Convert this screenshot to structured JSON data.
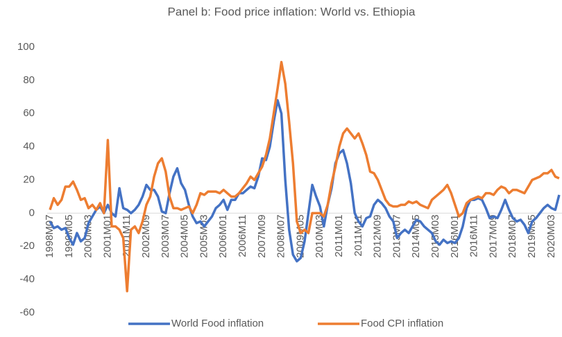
{
  "chart_data": {
    "type": "line",
    "title": "Panel b: Food price inflation: World vs. Ethiopia",
    "categories": [
      "1998M07",
      null,
      null,
      null,
      null,
      "1999M05",
      null,
      null,
      null,
      null,
      "2000M03",
      null,
      null,
      null,
      null,
      "2001M01",
      null,
      null,
      null,
      null,
      "2001M11",
      null,
      null,
      null,
      null,
      "2002M09",
      null,
      null,
      null,
      null,
      "2003M07",
      null,
      null,
      null,
      null,
      "2004M05",
      null,
      null,
      null,
      null,
      "2005M03",
      null,
      null,
      null,
      null,
      "2006M01",
      null,
      null,
      null,
      null,
      "2006M11",
      null,
      null,
      null,
      null,
      "2007M09",
      null,
      null,
      null,
      null,
      "2008M07",
      null,
      null,
      null,
      null,
      "2009M05",
      null,
      null,
      null,
      null,
      "2010M03",
      null,
      null,
      null,
      null,
      "2011M01",
      null,
      null,
      null,
      null,
      "2011M11",
      null,
      null,
      null,
      null,
      "2012M09",
      null,
      null,
      null,
      null,
      "2013M07",
      null,
      null,
      null,
      null,
      "2014M05",
      null,
      null,
      null,
      null,
      "2015M03",
      null,
      null,
      null,
      null,
      "2016M01",
      null,
      null,
      null,
      null,
      "2016M11",
      null,
      null,
      null,
      null,
      "2017M09",
      null,
      null,
      null,
      null,
      "2018M07",
      null,
      null,
      null,
      null,
      "2019M05",
      null,
      null,
      null,
      null,
      "2020M03",
      null,
      null
    ],
    "series": [
      {
        "name": "World Food inflation",
        "color": "#4472c4",
        "values": [
          -5,
          -9,
          -8,
          -10,
          -9,
          -15,
          -19,
          -12,
          -17,
          -15,
          -6,
          -2,
          2,
          4,
          0,
          5,
          0,
          -2,
          15,
          3,
          2,
          0,
          2,
          5,
          10,
          17,
          14,
          14,
          10,
          1,
          0,
          12,
          22,
          27,
          18,
          14,
          5,
          -2,
          -6,
          -5,
          -8,
          -5,
          -2,
          3,
          5,
          8,
          2,
          8,
          8,
          12,
          12,
          14,
          16,
          15,
          22,
          33,
          32,
          40,
          55,
          68,
          60,
          20,
          -10,
          -25,
          -29,
          -27,
          -17,
          0,
          17,
          10,
          4,
          -8,
          5,
          15,
          30,
          36,
          38,
          30,
          18,
          0,
          -5,
          -8,
          -3,
          -2,
          5,
          8,
          6,
          3,
          -2,
          -5,
          -15,
          -12,
          -10,
          -12,
          -8,
          -4,
          -5,
          -8,
          -10,
          -12,
          -17,
          -19,
          -16,
          -18,
          -17,
          -18,
          -15,
          -8,
          3,
          8,
          8,
          9,
          8,
          3,
          -3,
          -2,
          -3,
          2,
          8,
          2,
          -3,
          -5,
          -4,
          -7,
          -12,
          -5,
          -3,
          0,
          3,
          5,
          3,
          2,
          11
        ]
      },
      {
        "name": "Food CPI inflation",
        "color": "#ed7d31",
        "values": [
          2,
          9,
          5,
          8,
          16,
          16,
          19,
          14,
          8,
          9,
          3,
          5,
          2,
          6,
          0,
          44,
          -8,
          -8,
          -10,
          -15,
          -47,
          -10,
          -8,
          -12,
          -5,
          5,
          10,
          22,
          30,
          33,
          25,
          10,
          3,
          3,
          2,
          3,
          4,
          0,
          5,
          12,
          11,
          13,
          13,
          13,
          12,
          14,
          12,
          10,
          10,
          12,
          15,
          18,
          22,
          20,
          24,
          28,
          35,
          45,
          60,
          75,
          91,
          78,
          55,
          30,
          -5,
          -12,
          -10,
          -12,
          0,
          0,
          0,
          -2,
          5,
          18,
          28,
          40,
          48,
          51,
          48,
          45,
          48,
          42,
          35,
          25,
          24,
          20,
          14,
          8,
          5,
          4,
          4,
          5,
          5,
          7,
          6,
          7,
          5,
          4,
          3,
          8,
          10,
          12,
          14,
          17,
          12,
          5,
          -2,
          0,
          6,
          8,
          9,
          10,
          9,
          12,
          12,
          11,
          14,
          16,
          15,
          12,
          14,
          14,
          13,
          12,
          16,
          20,
          21,
          22,
          24,
          24,
          26,
          22,
          21
        ]
      }
    ],
    "ylim": [
      -60,
      100
    ],
    "yticks": [
      -60,
      -40,
      -20,
      0,
      20,
      40,
      60,
      80,
      100
    ]
  }
}
